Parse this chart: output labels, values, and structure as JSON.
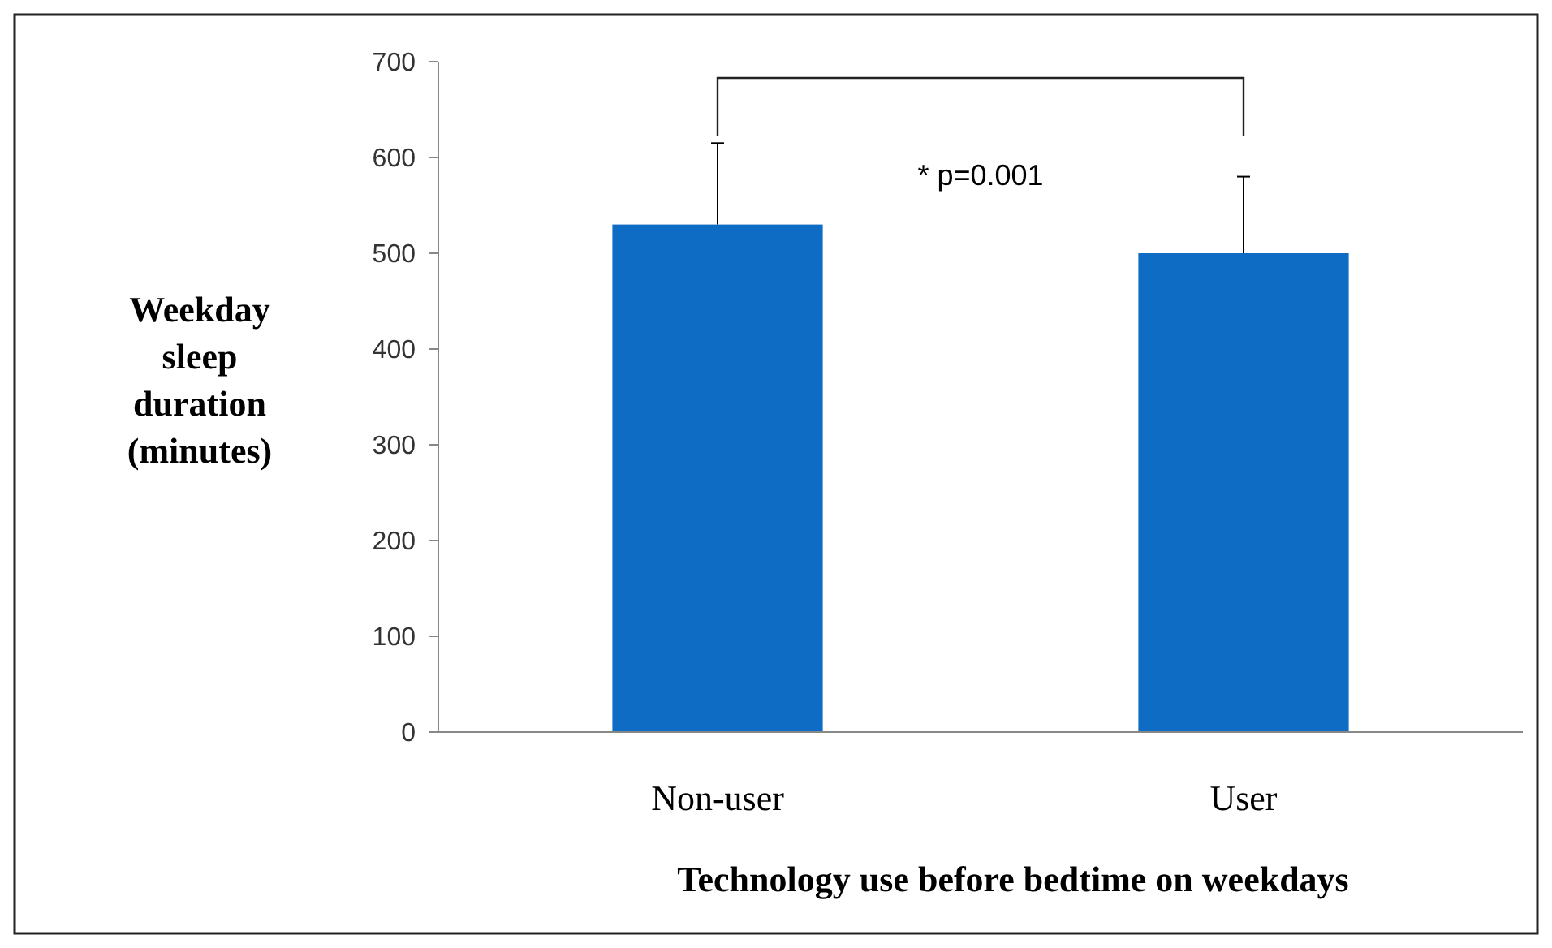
{
  "chart_data": {
    "type": "bar",
    "xlabel": "Technology use before bedtime on weekdays",
    "ylabel": "Weekday sleep duration (minutes)",
    "categories": [
      "Non-user",
      "User"
    ],
    "values": [
      530,
      500
    ],
    "errors": [
      [
        530,
        615
      ],
      [
        500,
        580
      ]
    ],
    "color": "#0f6cc4",
    "ylim": [
      0,
      700
    ],
    "yticks": [
      0,
      100,
      200,
      300,
      400,
      500,
      600,
      700
    ],
    "grid": false,
    "legend": false,
    "annotations": [
      "* p=0.001"
    ]
  }
}
